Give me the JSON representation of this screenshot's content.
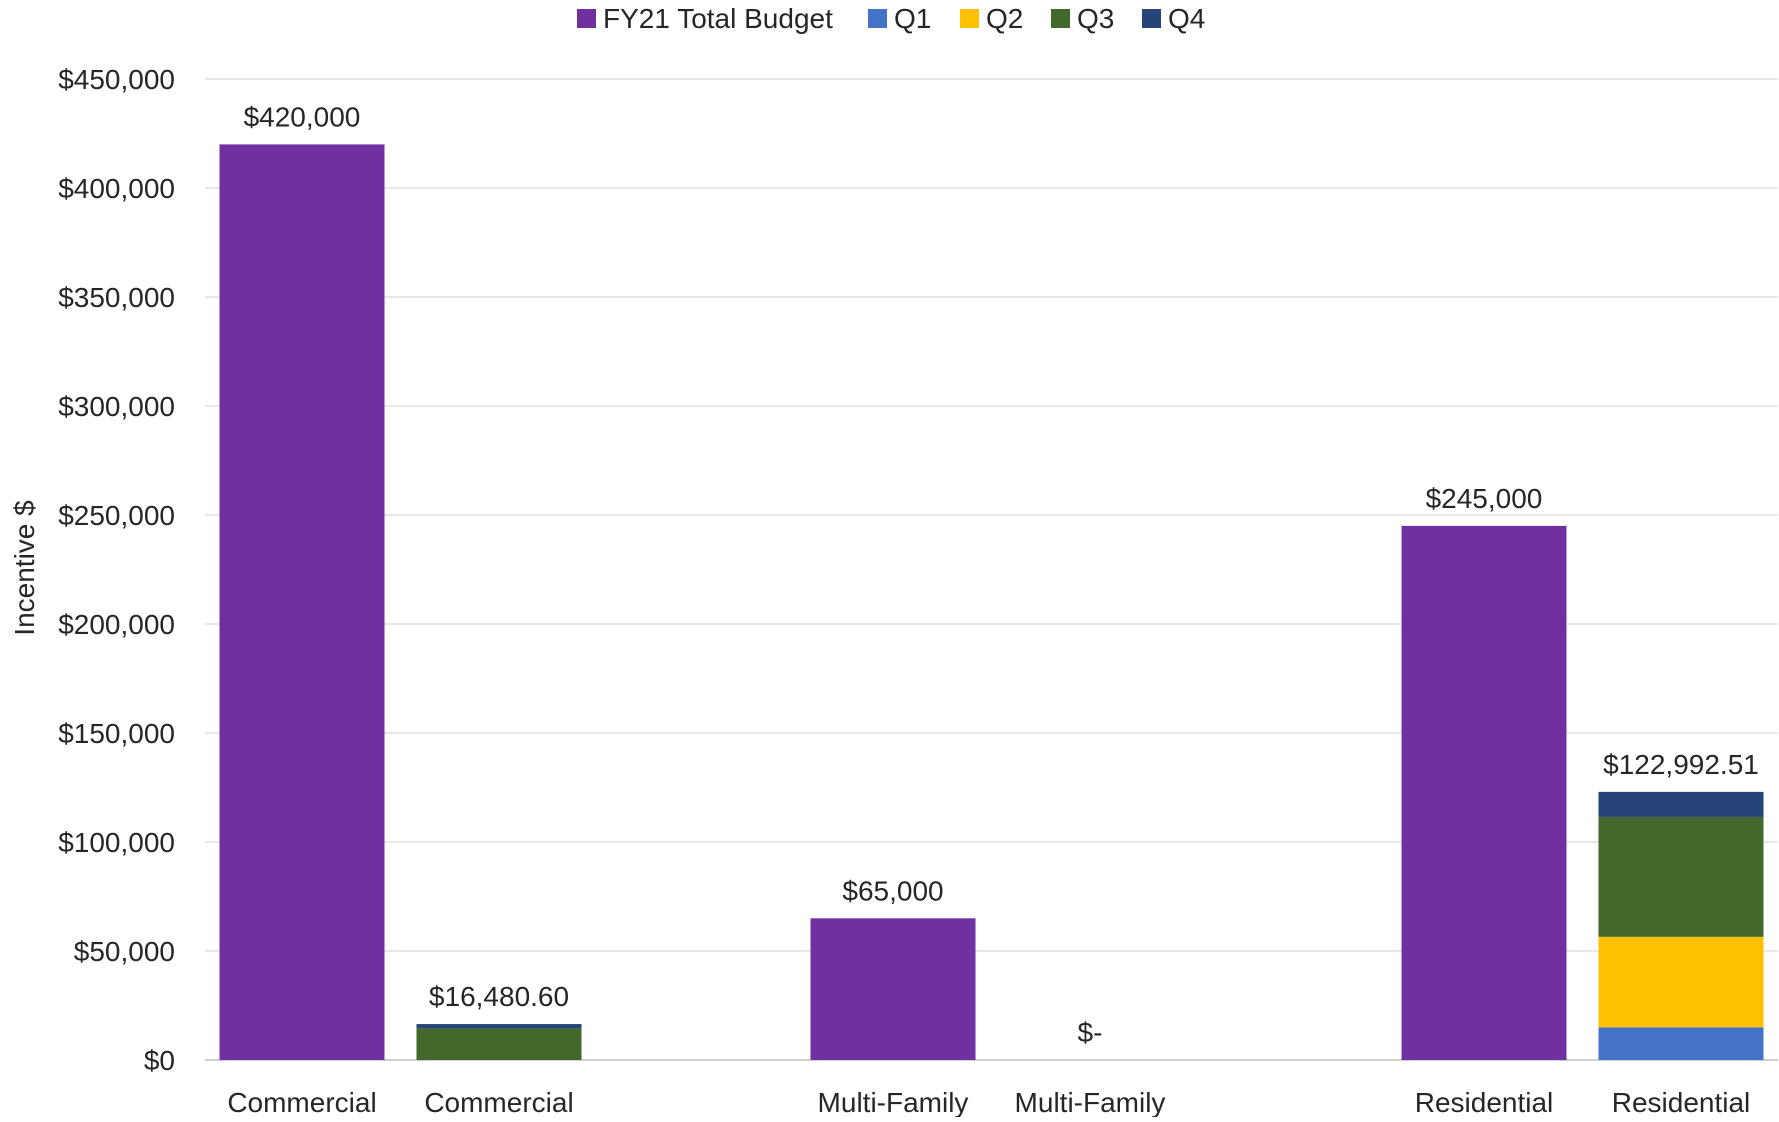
{
  "chart_data": {
    "type": "bar",
    "stacked_groups": true,
    "ylabel": "Incentive $",
    "ylim": [
      0,
      450000
    ],
    "yticks": [
      0,
      50000,
      100000,
      150000,
      200000,
      250000,
      300000,
      350000,
      400000,
      450000
    ],
    "ytick_labels": [
      "$0",
      "$50,000",
      "$100,000",
      "$150,000",
      "$200,000",
      "$250,000",
      "$300,000",
      "$350,000",
      "$400,000",
      "$450,000"
    ],
    "grid": true,
    "legend_position": "top-center",
    "legend": [
      {
        "name": "FY21 Total Budget",
        "color": "#7030A0"
      },
      {
        "name": "Q1",
        "color": "#4472C4"
      },
      {
        "name": "Q2",
        "color": "#FFC000"
      },
      {
        "name": "Q3",
        "color": "#43682B"
      },
      {
        "name": "Q4",
        "color": "#264478"
      }
    ],
    "bars": [
      {
        "category": "Commercial",
        "label": "$420,000",
        "segments": [
          {
            "series": "FY21 Total Budget",
            "value": 420000
          }
        ]
      },
      {
        "category": "Commercial",
        "label": "$16,480.60",
        "segments": [
          {
            "series": "Q1",
            "value": 0
          },
          {
            "series": "Q2",
            "value": 0
          },
          {
            "series": "Q3",
            "value": 14500
          },
          {
            "series": "Q4",
            "value": 1980.6
          }
        ]
      },
      {
        "category": "Multi-Family",
        "label": "$65,000",
        "segments": [
          {
            "series": "FY21 Total Budget",
            "value": 65000
          }
        ]
      },
      {
        "category": "Multi-Family",
        "label": "$-",
        "segments": [
          {
            "series": "Q1",
            "value": 0
          },
          {
            "series": "Q2",
            "value": 0
          },
          {
            "series": "Q3",
            "value": 0
          },
          {
            "series": "Q4",
            "value": 0
          }
        ]
      },
      {
        "category": "Residential",
        "label": "$245,000",
        "segments": [
          {
            "series": "FY21 Total Budget",
            "value": 245000
          }
        ]
      },
      {
        "category": "Residential",
        "label": "$122,992.51",
        "segments": [
          {
            "series": "Q1",
            "value": 15000
          },
          {
            "series": "Q2",
            "value": 41500
          },
          {
            "series": "Q3",
            "value": 55000
          },
          {
            "series": "Q4",
            "value": 11492.51
          }
        ]
      }
    ]
  }
}
